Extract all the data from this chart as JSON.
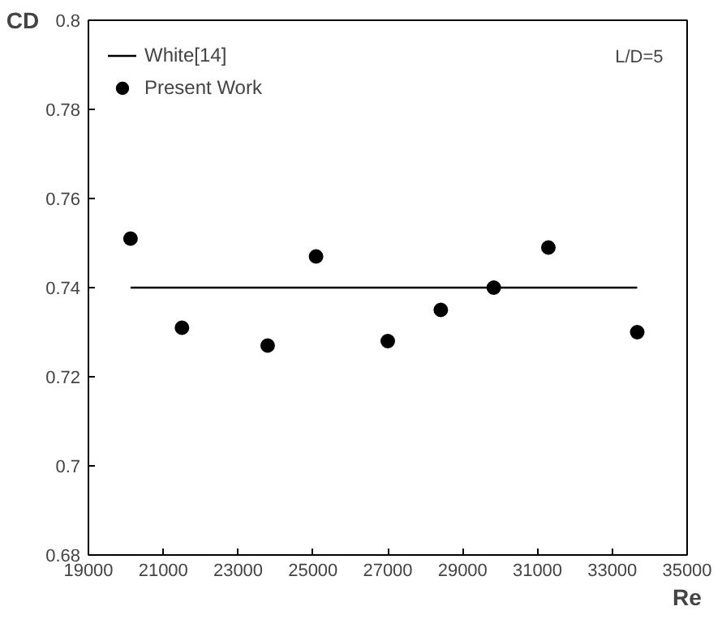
{
  "chart_data": {
    "type": "scatter",
    "xlabel": "Re",
    "ylabel": "CD",
    "xlim": [
      19000,
      35000
    ],
    "xticks": [
      19000,
      21000,
      23000,
      25000,
      27000,
      29000,
      31000,
      33000,
      35000
    ],
    "ylim": [
      0.68,
      0.8
    ],
    "yticks": [
      {
        "value": 0.68,
        "label": "0.68"
      },
      {
        "value": 0.7,
        "label": "0.7"
      },
      {
        "value": 0.72,
        "label": "0.72"
      },
      {
        "value": 0.74,
        "label": "0.74"
      },
      {
        "value": 0.76,
        "label": "0.76"
      },
      {
        "value": 0.78,
        "label": "0.78"
      },
      {
        "value": 0.8,
        "label": "0.8"
      }
    ],
    "grid": false,
    "legend": "top left",
    "annotations": [
      "L/D=5"
    ],
    "series": [
      {
        "name": "White[14]",
        "type": "line",
        "color": "#000000",
        "marker": "none",
        "line_style": "solid",
        "x": [
          20125,
          33667
        ],
        "values": [
          0.74,
          0.74
        ]
      },
      {
        "name": "Present Work",
        "type": "scatter",
        "color": "#000000",
        "marker": "circle",
        "x": [
          20125,
          21500,
          23790,
          25083,
          27000,
          28417,
          29833,
          31292,
          33667
        ],
        "values": [
          0.751,
          0.731,
          0.727,
          0.747,
          0.728,
          0.735,
          0.74,
          0.749,
          0.73
        ]
      }
    ]
  }
}
